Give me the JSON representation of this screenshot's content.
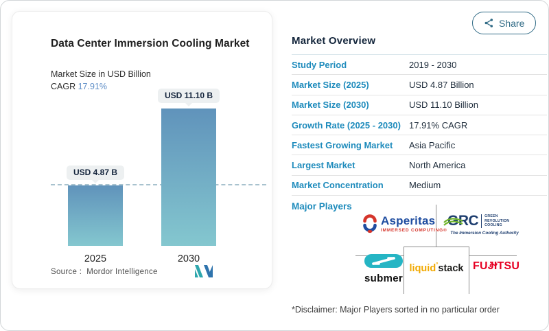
{
  "chart_card": {
    "title": "Data Center Immersion Cooling Market",
    "subtitle": "Market Size in USD Billion",
    "cagr_label": "CAGR",
    "cagr_value": "17.91%",
    "source_prefix": "Source :",
    "source_name": "Mordor Intelligence"
  },
  "chart_data": {
    "type": "bar",
    "categories": [
      "2025",
      "2030"
    ],
    "values": [
      4.87,
      11.1
    ],
    "bar_labels": [
      "USD 4.87 B",
      "USD 11.10 B"
    ],
    "title": "Data Center Immersion Cooling Market",
    "xlabel": "",
    "ylabel": "Market Size in USD Billion",
    "ylim": [
      0,
      11.1
    ],
    "grid": false,
    "annotations": {
      "dashed_reference_line_at": 4.87
    },
    "colors": {
      "bar_gradient_top": "#6093bb",
      "bar_gradient_bottom": "#84c7cf"
    }
  },
  "share": {
    "label": "Share"
  },
  "overview": {
    "heading": "Market Overview",
    "rows": [
      {
        "label": "Study Period",
        "value": "2019 - 2030"
      },
      {
        "label": "Market Size (2025)",
        "value": "USD 4.87 Billion"
      },
      {
        "label": "Market Size (2030)",
        "value": "USD 11.10 Billion"
      },
      {
        "label": "Growth Rate (2025 - 2030)",
        "value": "17.91% CAGR"
      },
      {
        "label": "Fastest Growing Market",
        "value": "Asia Pacific"
      },
      {
        "label": "Largest Market",
        "value": "North America"
      },
      {
        "label": "Market Concentration",
        "value": "Medium"
      }
    ],
    "major_players_label": "Major Players",
    "disclaimer": "*Disclaimer: Major Players sorted in no particular order"
  },
  "logos": {
    "asperitas": {
      "name": "Asperitas",
      "tagline": "IMMERSED COMPUTING®"
    },
    "grc": {
      "name": "GRC",
      "sub1": "GREEN",
      "sub2": "REVOLUTION",
      "sub3": "COOLING",
      "tagline": "The Immersion Cooling Authority"
    },
    "submer": {
      "name": "submer"
    },
    "liquidstack": {
      "part1": "liquid",
      "degree": "°",
      "part2": "stack"
    },
    "fujitsu": {
      "name": "FUJITSU"
    }
  }
}
